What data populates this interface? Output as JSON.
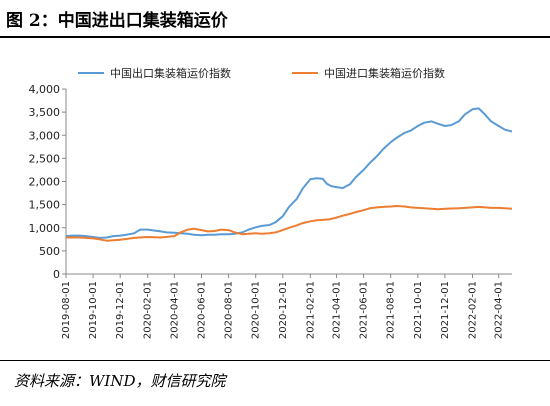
{
  "figure": {
    "title": "图 2：中国进出口集装箱运价",
    "source": "资料来源：WIND，财信研究院"
  },
  "chart_data": {
    "type": "line",
    "title": "",
    "xlabel": "",
    "ylabel": "",
    "ylim": [
      0,
      4000
    ],
    "y_ticks": [
      "0",
      "500",
      "1,000",
      "1,500",
      "2,000",
      "2,500",
      "3,000",
      "3,500",
      "4,000"
    ],
    "x_ticks": [
      "2019-08-01",
      "2019-10-01",
      "2019-12-01",
      "2020-02-01",
      "2020-04-01",
      "2020-06-01",
      "2020-08-01",
      "2020-10-01",
      "2020-12-01",
      "2021-02-01",
      "2021-04-01",
      "2021-06-01",
      "2021-08-01",
      "2021-10-01",
      "2021-12-01",
      "2022-02-01",
      "2022-04-01"
    ],
    "legend_position": "top",
    "grid": false,
    "colors": {
      "export": "#5b9bd5",
      "import": "#ed7d31"
    },
    "series": [
      {
        "name": "中国出口集装箱运价指数",
        "points": [
          [
            "2019-08-01",
            820
          ],
          [
            "2019-08-15",
            830
          ],
          [
            "2019-09-01",
            830
          ],
          [
            "2019-09-15",
            820
          ],
          [
            "2019-10-01",
            800
          ],
          [
            "2019-10-15",
            780
          ],
          [
            "2019-11-01",
            790
          ],
          [
            "2019-11-15",
            820
          ],
          [
            "2019-12-01",
            830
          ],
          [
            "2019-12-15",
            850
          ],
          [
            "2020-01-01",
            880
          ],
          [
            "2020-01-15",
            960
          ],
          [
            "2020-02-01",
            960
          ],
          [
            "2020-02-15",
            940
          ],
          [
            "2020-03-01",
            920
          ],
          [
            "2020-03-15",
            900
          ],
          [
            "2020-04-01",
            890
          ],
          [
            "2020-04-15",
            880
          ],
          [
            "2020-05-01",
            870
          ],
          [
            "2020-05-15",
            850
          ],
          [
            "2020-06-01",
            840
          ],
          [
            "2020-06-15",
            850
          ],
          [
            "2020-07-01",
            850
          ],
          [
            "2020-07-15",
            860
          ],
          [
            "2020-08-01",
            860
          ],
          [
            "2020-08-15",
            870
          ],
          [
            "2020-09-01",
            900
          ],
          [
            "2020-09-15",
            960
          ],
          [
            "2020-10-01",
            1010
          ],
          [
            "2020-10-15",
            1040
          ],
          [
            "2020-11-01",
            1060
          ],
          [
            "2020-11-15",
            1120
          ],
          [
            "2020-12-01",
            1250
          ],
          [
            "2020-12-15",
            1450
          ],
          [
            "2021-01-01",
            1620
          ],
          [
            "2021-01-15",
            1850
          ],
          [
            "2021-02-01",
            2050
          ],
          [
            "2021-02-15",
            2070
          ],
          [
            "2021-03-01",
            2060
          ],
          [
            "2021-03-10",
            1950
          ],
          [
            "2021-03-20",
            1900
          ],
          [
            "2021-04-01",
            1880
          ],
          [
            "2021-04-15",
            1860
          ],
          [
            "2021-05-01",
            1940
          ],
          [
            "2021-05-15",
            2100
          ],
          [
            "2021-06-01",
            2250
          ],
          [
            "2021-06-15",
            2400
          ],
          [
            "2021-07-01",
            2550
          ],
          [
            "2021-07-15",
            2700
          ],
          [
            "2021-08-01",
            2850
          ],
          [
            "2021-08-15",
            2950
          ],
          [
            "2021-09-01",
            3050
          ],
          [
            "2021-09-15",
            3100
          ],
          [
            "2021-10-01",
            3200
          ],
          [
            "2021-10-15",
            3270
          ],
          [
            "2021-11-01",
            3300
          ],
          [
            "2021-11-15",
            3250
          ],
          [
            "2021-12-01",
            3200
          ],
          [
            "2021-12-15",
            3220
          ],
          [
            "2022-01-01",
            3300
          ],
          [
            "2022-01-15",
            3450
          ],
          [
            "2022-02-01",
            3560
          ],
          [
            "2022-02-15",
            3580
          ],
          [
            "2022-03-01",
            3450
          ],
          [
            "2022-03-15",
            3300
          ],
          [
            "2022-04-01",
            3200
          ],
          [
            "2022-04-15",
            3120
          ],
          [
            "2022-05-01",
            3080
          ]
        ]
      },
      {
        "name": "中国进口集装箱运价指数",
        "points": [
          [
            "2019-08-01",
            790
          ],
          [
            "2019-09-01",
            790
          ],
          [
            "2019-10-01",
            770
          ],
          [
            "2019-10-15",
            750
          ],
          [
            "2019-11-01",
            720
          ],
          [
            "2019-12-01",
            740
          ],
          [
            "2020-01-01",
            780
          ],
          [
            "2020-02-01",
            800
          ],
          [
            "2020-03-01",
            790
          ],
          [
            "2020-04-01",
            820
          ],
          [
            "2020-04-15",
            900
          ],
          [
            "2020-05-01",
            960
          ],
          [
            "2020-05-15",
            980
          ],
          [
            "2020-06-01",
            950
          ],
          [
            "2020-06-15",
            920
          ],
          [
            "2020-07-01",
            930
          ],
          [
            "2020-07-15",
            960
          ],
          [
            "2020-08-01",
            950
          ],
          [
            "2020-08-15",
            900
          ],
          [
            "2020-09-01",
            860
          ],
          [
            "2020-09-15",
            870
          ],
          [
            "2020-10-01",
            880
          ],
          [
            "2020-10-15",
            870
          ],
          [
            "2020-11-01",
            880
          ],
          [
            "2020-11-15",
            900
          ],
          [
            "2020-12-01",
            950
          ],
          [
            "2020-12-15",
            1000
          ],
          [
            "2021-01-01",
            1050
          ],
          [
            "2021-01-15",
            1100
          ],
          [
            "2021-02-01",
            1140
          ],
          [
            "2021-02-15",
            1160
          ],
          [
            "2021-03-01",
            1170
          ],
          [
            "2021-03-15",
            1180
          ],
          [
            "2021-04-01",
            1220
          ],
          [
            "2021-04-15",
            1260
          ],
          [
            "2021-05-01",
            1300
          ],
          [
            "2021-05-15",
            1340
          ],
          [
            "2021-06-01",
            1380
          ],
          [
            "2021-06-15",
            1420
          ],
          [
            "2021-07-01",
            1440
          ],
          [
            "2021-07-15",
            1450
          ],
          [
            "2021-08-01",
            1460
          ],
          [
            "2021-08-15",
            1470
          ],
          [
            "2021-09-01",
            1460
          ],
          [
            "2021-09-15",
            1440
          ],
          [
            "2021-10-01",
            1430
          ],
          [
            "2021-10-15",
            1420
          ],
          [
            "2021-11-01",
            1410
          ],
          [
            "2021-11-15",
            1400
          ],
          [
            "2021-12-01",
            1410
          ],
          [
            "2022-01-01",
            1420
          ],
          [
            "2022-01-15",
            1430
          ],
          [
            "2022-02-01",
            1440
          ],
          [
            "2022-02-15",
            1450
          ],
          [
            "2022-03-01",
            1440
          ],
          [
            "2022-03-15",
            1430
          ],
          [
            "2022-04-01",
            1430
          ],
          [
            "2022-04-15",
            1420
          ],
          [
            "2022-05-01",
            1410
          ]
        ]
      }
    ]
  }
}
